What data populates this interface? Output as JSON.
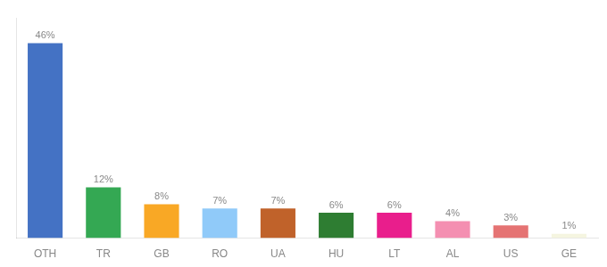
{
  "chart_data": {
    "type": "bar",
    "categories": [
      "OTH",
      "TR",
      "GB",
      "RO",
      "UA",
      "HU",
      "LT",
      "AL",
      "US",
      "GE"
    ],
    "values": [
      46,
      12,
      8,
      7,
      7,
      6,
      6,
      4,
      3,
      1
    ],
    "value_labels": [
      "46%",
      "12%",
      "8%",
      "7%",
      "7%",
      "6%",
      "6%",
      "4%",
      "3%",
      "1%"
    ],
    "colors": [
      "#4472c4",
      "#34a853",
      "#f9a825",
      "#90caf9",
      "#c0622a",
      "#2e7d32",
      "#e91e8c",
      "#f48fb1",
      "#e57373",
      "#f5f5e0"
    ],
    "ylim": [
      0,
      52
    ],
    "grid": false,
    "data_labels": true,
    "tick_labels": "x"
  }
}
